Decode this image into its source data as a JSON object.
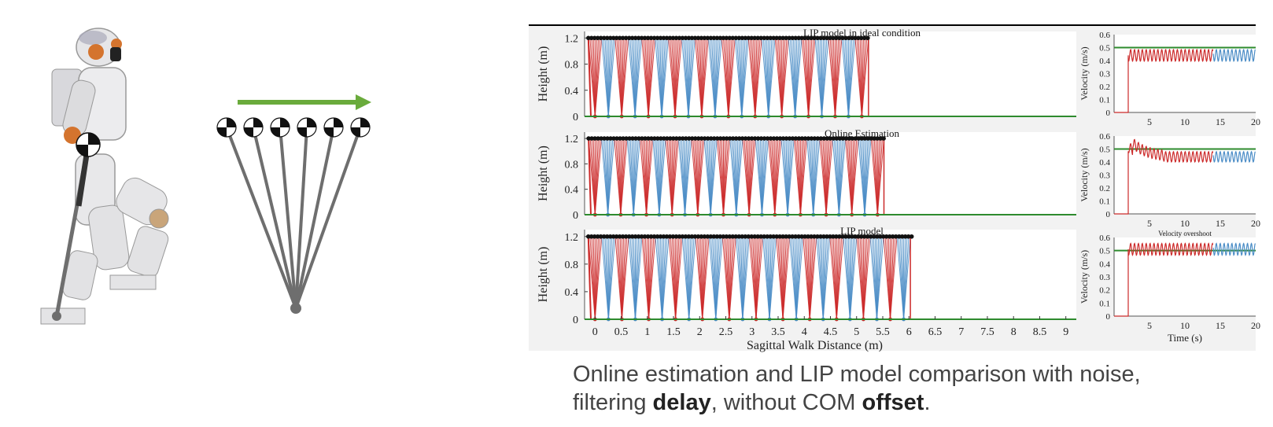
{
  "caption": {
    "line1": "Online estimation and LIP model comparison with noise,",
    "line2_pre": "filtering ",
    "line2_bold1": "delay",
    "line2_mid": ", without COM ",
    "line2_bold2": "offset",
    "line2_post": "."
  },
  "colors": {
    "stance_red": "#cc2a2a",
    "swing_blue": "#4a8cc6",
    "com_black": "#111111",
    "ground_green": "#2e8b2e",
    "reference_green": "#2e8b2e",
    "arrow_green": "#6aab3c",
    "pendulum_gray": "#6e6e6e"
  },
  "illustration": {
    "robot_icon": "humanoid-robot-icon",
    "pendulum_icon": "inverted-pendulum-icon",
    "direction_arrow_icon": "right-arrow-icon",
    "com_marker_icon": "com-marker-icon",
    "pendulum_count": 6
  },
  "chart_data": [
    {
      "type": "line",
      "title": "LIP model in ideal condition",
      "ylabel": "Height (m)",
      "xlim": [
        -0.2,
        9.2
      ],
      "ylim": [
        0,
        1.3
      ],
      "yticks": [
        0,
        0.4,
        0.8,
        1.2
      ],
      "com_height": 1.2,
      "steps": {
        "start": 0,
        "end": 5.1,
        "count": 21
      }
    },
    {
      "type": "line",
      "title": "Online Estimation",
      "ylabel": "Height (m)",
      "xlim": [
        -0.2,
        9.2
      ],
      "ylim": [
        0,
        1.3
      ],
      "yticks": [
        0,
        0.4,
        0.8,
        1.2
      ],
      "com_height": 1.2,
      "steps": {
        "start": 0,
        "end": 5.4,
        "count": 23
      }
    },
    {
      "type": "line",
      "title": "LIP model",
      "ylabel": "Height (m)",
      "xlabel": "Sagittal Walk Distance (m)",
      "xlim": [
        -0.2,
        9.2
      ],
      "ylim": [
        0,
        1.3
      ],
      "xticks": [
        "0",
        "0.5",
        "1",
        "1.5",
        "2",
        "2.5",
        "3",
        "3.5",
        "4",
        "4.5",
        "5",
        "5.5",
        "6",
        "6.5",
        "7",
        "7.5",
        "8",
        "8.5",
        "9"
      ],
      "yticks": [
        0,
        0.4,
        0.8,
        1.2
      ],
      "com_height": 1.2,
      "steps": {
        "start": 0,
        "end": 5.9,
        "count": 24
      }
    },
    {
      "type": "line",
      "title": "",
      "ylabel": "Velocity (m/s)",
      "xlim": [
        0,
        20
      ],
      "ylim": [
        0,
        0.6
      ],
      "xticks": [
        5,
        10,
        15,
        20
      ],
      "yticks": [
        0,
        0.1,
        0.2,
        0.3,
        0.4,
        0.5,
        0.6
      ],
      "reference": 0.5,
      "velocity": {
        "start_time": 2,
        "switch_time": 14,
        "mean": 0.44,
        "amplitude": 0.045,
        "overshoot": false
      }
    },
    {
      "type": "line",
      "title": "",
      "ylabel": "Velocity (m/s)",
      "xlim": [
        0,
        20
      ],
      "ylim": [
        0,
        0.6
      ],
      "xticks": [
        5,
        10,
        15,
        20
      ],
      "yticks": [
        0,
        0.1,
        0.2,
        0.3,
        0.4,
        0.5,
        0.6
      ],
      "reference": 0.5,
      "velocity": {
        "start_time": 2,
        "switch_time": 14,
        "mean": 0.44,
        "amplitude": 0.04,
        "overshoot": true
      }
    },
    {
      "type": "line",
      "title": "Velocity overshoot",
      "ylabel": "Velocity (m/s)",
      "xlabel": "Time (s)",
      "xlim": [
        0,
        20
      ],
      "ylim": [
        0,
        0.6
      ],
      "xticks": [
        5,
        10,
        15,
        20
      ],
      "yticks": [
        0,
        0.1,
        0.2,
        0.3,
        0.4,
        0.5,
        0.6
      ],
      "reference": 0.5,
      "velocity": {
        "start_time": 2,
        "switch_time": 14,
        "mean": 0.51,
        "amplitude": 0.045,
        "overshoot": false
      }
    }
  ]
}
